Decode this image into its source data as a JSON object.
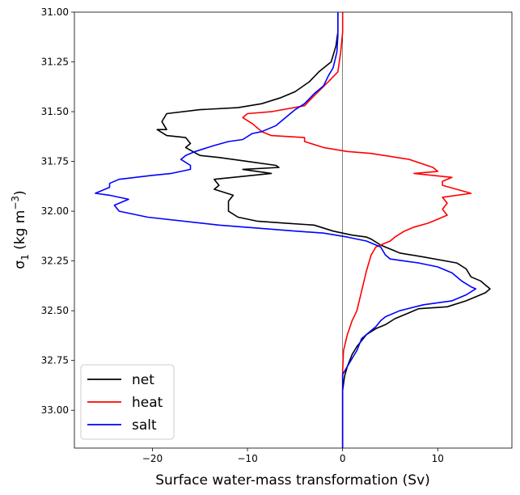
{
  "chart_data": {
    "type": "line",
    "xlabel": "Surface water-mass transformation (Sv)",
    "ylabel_main": "σ",
    "ylabel_sub": "1",
    "ylabel_unit_pre": " (kg m",
    "ylabel_unit_sup": "−3",
    "ylabel_unit_post": ")",
    "xlim": [
      -28.2,
      17.8
    ],
    "ylim": [
      33.19,
      31.0
    ],
    "y_inverted": true,
    "x_ticks": [
      -20,
      -10,
      0,
      10
    ],
    "x_tick_labels": [
      "−20",
      "−10",
      "0",
      "10"
    ],
    "y_ticks": [
      31.0,
      31.25,
      31.5,
      31.75,
      32.0,
      32.25,
      32.5,
      32.75,
      33.0
    ],
    "y_tick_labels": [
      "31.00",
      "31.25",
      "31.50",
      "31.75",
      "32.00",
      "32.25",
      "32.50",
      "32.75",
      "33.00"
    ],
    "zero_line_x": 0,
    "legend_position": "lower-left",
    "series": [
      {
        "name": "net",
        "color": "#000000",
        "points": [
          [
            -0.5,
            31.0
          ],
          [
            -0.5,
            31.1
          ],
          [
            -0.7,
            31.17
          ],
          [
            -1.2,
            31.25
          ],
          [
            -2.5,
            31.3
          ],
          [
            -3.5,
            31.35
          ],
          [
            -5.0,
            31.4
          ],
          [
            -6.5,
            31.43
          ],
          [
            -8.5,
            31.46
          ],
          [
            -11.0,
            31.48
          ],
          [
            -15.0,
            31.49
          ],
          [
            -18.5,
            31.51
          ],
          [
            -19.0,
            31.55
          ],
          [
            -18.5,
            31.59
          ],
          [
            -19.5,
            31.59
          ],
          [
            -18.5,
            31.62
          ],
          [
            -16.5,
            31.63
          ],
          [
            -16.0,
            31.66
          ],
          [
            -16.5,
            31.68
          ],
          [
            -15.0,
            31.72
          ],
          [
            -13.0,
            31.73
          ],
          [
            -10.0,
            31.75
          ],
          [
            -7.0,
            31.77
          ],
          [
            -6.7,
            31.78
          ],
          [
            -10.5,
            31.79
          ],
          [
            -7.5,
            31.81
          ],
          [
            -13.5,
            31.84
          ],
          [
            -13.0,
            31.87
          ],
          [
            -13.5,
            31.89
          ],
          [
            -11.5,
            31.92
          ],
          [
            -12.0,
            31.95
          ],
          [
            -12.0,
            32.0
          ],
          [
            -11.0,
            32.03
          ],
          [
            -9.0,
            32.05
          ],
          [
            -6.0,
            32.06
          ],
          [
            -3.0,
            32.07
          ],
          [
            -1.0,
            32.1
          ],
          [
            1.0,
            32.12
          ],
          [
            2.5,
            32.13
          ],
          [
            3.0,
            32.14
          ],
          [
            4.0,
            32.17
          ],
          [
            5.0,
            32.19
          ],
          [
            5.5,
            32.2
          ],
          [
            6.0,
            32.21
          ],
          [
            8.5,
            32.23
          ],
          [
            12.0,
            32.26
          ],
          [
            13.0,
            32.29
          ],
          [
            13.5,
            32.33
          ],
          [
            14.5,
            32.35
          ],
          [
            15.0,
            32.37
          ],
          [
            15.5,
            32.39
          ],
          [
            15.0,
            32.41
          ],
          [
            13.0,
            32.45
          ],
          [
            11.0,
            32.48
          ],
          [
            8.0,
            32.49
          ],
          [
            6.5,
            32.52
          ],
          [
            5.5,
            32.54
          ],
          [
            4.5,
            32.57
          ],
          [
            3.5,
            32.59
          ],
          [
            2.5,
            32.62
          ],
          [
            2.0,
            32.65
          ],
          [
            1.5,
            32.68
          ],
          [
            1.0,
            32.72
          ],
          [
            0.5,
            32.78
          ],
          [
            0.2,
            32.83
          ],
          [
            0.0,
            32.9
          ],
          [
            0.0,
            33.19
          ]
        ]
      },
      {
        "name": "heat",
        "color": "#ff0000",
        "points": [
          [
            0.0,
            31.0
          ],
          [
            0.0,
            31.1
          ],
          [
            -0.2,
            31.2
          ],
          [
            -0.5,
            31.3
          ],
          [
            -1.5,
            31.35
          ],
          [
            -3.0,
            31.42
          ],
          [
            -4.0,
            31.47
          ],
          [
            -7.5,
            31.5
          ],
          [
            -10.0,
            31.51
          ],
          [
            -10.5,
            31.53
          ],
          [
            -9.5,
            31.56
          ],
          [
            -9.0,
            31.58
          ],
          [
            -8.5,
            31.6
          ],
          [
            -7.5,
            31.62
          ],
          [
            -4.0,
            31.63
          ],
          [
            -4.0,
            31.65
          ],
          [
            -2.0,
            31.68
          ],
          [
            0.5,
            31.7
          ],
          [
            3.0,
            31.71
          ],
          [
            7.0,
            31.74
          ],
          [
            9.5,
            31.78
          ],
          [
            10.0,
            31.8
          ],
          [
            7.5,
            31.81
          ],
          [
            11.5,
            31.83
          ],
          [
            10.5,
            31.85
          ],
          [
            10.5,
            31.87
          ],
          [
            13.5,
            31.91
          ],
          [
            10.5,
            31.93
          ],
          [
            11.0,
            31.96
          ],
          [
            10.5,
            31.99
          ],
          [
            11.0,
            32.02
          ],
          [
            10.0,
            32.04
          ],
          [
            9.0,
            32.06
          ],
          [
            7.5,
            32.08
          ],
          [
            6.5,
            32.1
          ],
          [
            5.5,
            32.13
          ],
          [
            5.0,
            32.15
          ],
          [
            3.5,
            32.18
          ],
          [
            3.0,
            32.22
          ],
          [
            2.5,
            32.3
          ],
          [
            2.0,
            32.4
          ],
          [
            1.5,
            32.5
          ],
          [
            1.0,
            32.55
          ],
          [
            0.5,
            32.62
          ],
          [
            0.1,
            32.7
          ],
          [
            0.0,
            32.8
          ],
          [
            0.0,
            33.19
          ]
        ]
      },
      {
        "name": "salt",
        "color": "#0000ff",
        "points": [
          [
            -0.5,
            31.0
          ],
          [
            -0.5,
            31.12
          ],
          [
            -0.6,
            31.2
          ],
          [
            -1.0,
            31.28
          ],
          [
            -1.5,
            31.32
          ],
          [
            -2.0,
            31.37
          ],
          [
            -3.0,
            31.41
          ],
          [
            -4.0,
            31.46
          ],
          [
            -5.0,
            31.49
          ],
          [
            -6.0,
            31.53
          ],
          [
            -7.0,
            31.57
          ],
          [
            -8.5,
            31.6
          ],
          [
            -9.5,
            31.61
          ],
          [
            -10.5,
            31.64
          ],
          [
            -12.0,
            31.65
          ],
          [
            -13.5,
            31.67
          ],
          [
            -15.5,
            31.7
          ],
          [
            -16.5,
            31.72
          ],
          [
            -17.0,
            31.74
          ],
          [
            -16.0,
            31.77
          ],
          [
            -16.0,
            31.79
          ],
          [
            -18.0,
            31.81
          ],
          [
            -20.0,
            31.82
          ],
          [
            -23.5,
            31.84
          ],
          [
            -24.5,
            31.86
          ],
          [
            -24.5,
            31.88
          ],
          [
            -26.0,
            31.91
          ],
          [
            -24.5,
            31.92
          ],
          [
            -22.5,
            31.94
          ],
          [
            -24.0,
            31.97
          ],
          [
            -23.5,
            32.0
          ],
          [
            -20.5,
            32.03
          ],
          [
            -13.0,
            32.07
          ],
          [
            -5.0,
            32.1
          ],
          [
            -2.0,
            32.11
          ],
          [
            0.5,
            32.13
          ],
          [
            2.5,
            32.15
          ],
          [
            4.0,
            32.18
          ],
          [
            4.5,
            32.22
          ],
          [
            5.0,
            32.24
          ],
          [
            8.0,
            32.26
          ],
          [
            10.0,
            32.28
          ],
          [
            11.5,
            32.31
          ],
          [
            12.5,
            32.35
          ],
          [
            13.5,
            32.38
          ],
          [
            14.0,
            32.39
          ],
          [
            13.0,
            32.42
          ],
          [
            11.5,
            32.45
          ],
          [
            8.5,
            32.47
          ],
          [
            6.0,
            32.5
          ],
          [
            4.5,
            32.53
          ],
          [
            4.0,
            32.55
          ],
          [
            3.5,
            32.58
          ],
          [
            3.0,
            32.6
          ],
          [
            2.0,
            32.64
          ],
          [
            1.5,
            32.7
          ],
          [
            0.5,
            32.78
          ],
          [
            0.0,
            32.82
          ],
          [
            0.0,
            33.19
          ]
        ]
      }
    ]
  }
}
